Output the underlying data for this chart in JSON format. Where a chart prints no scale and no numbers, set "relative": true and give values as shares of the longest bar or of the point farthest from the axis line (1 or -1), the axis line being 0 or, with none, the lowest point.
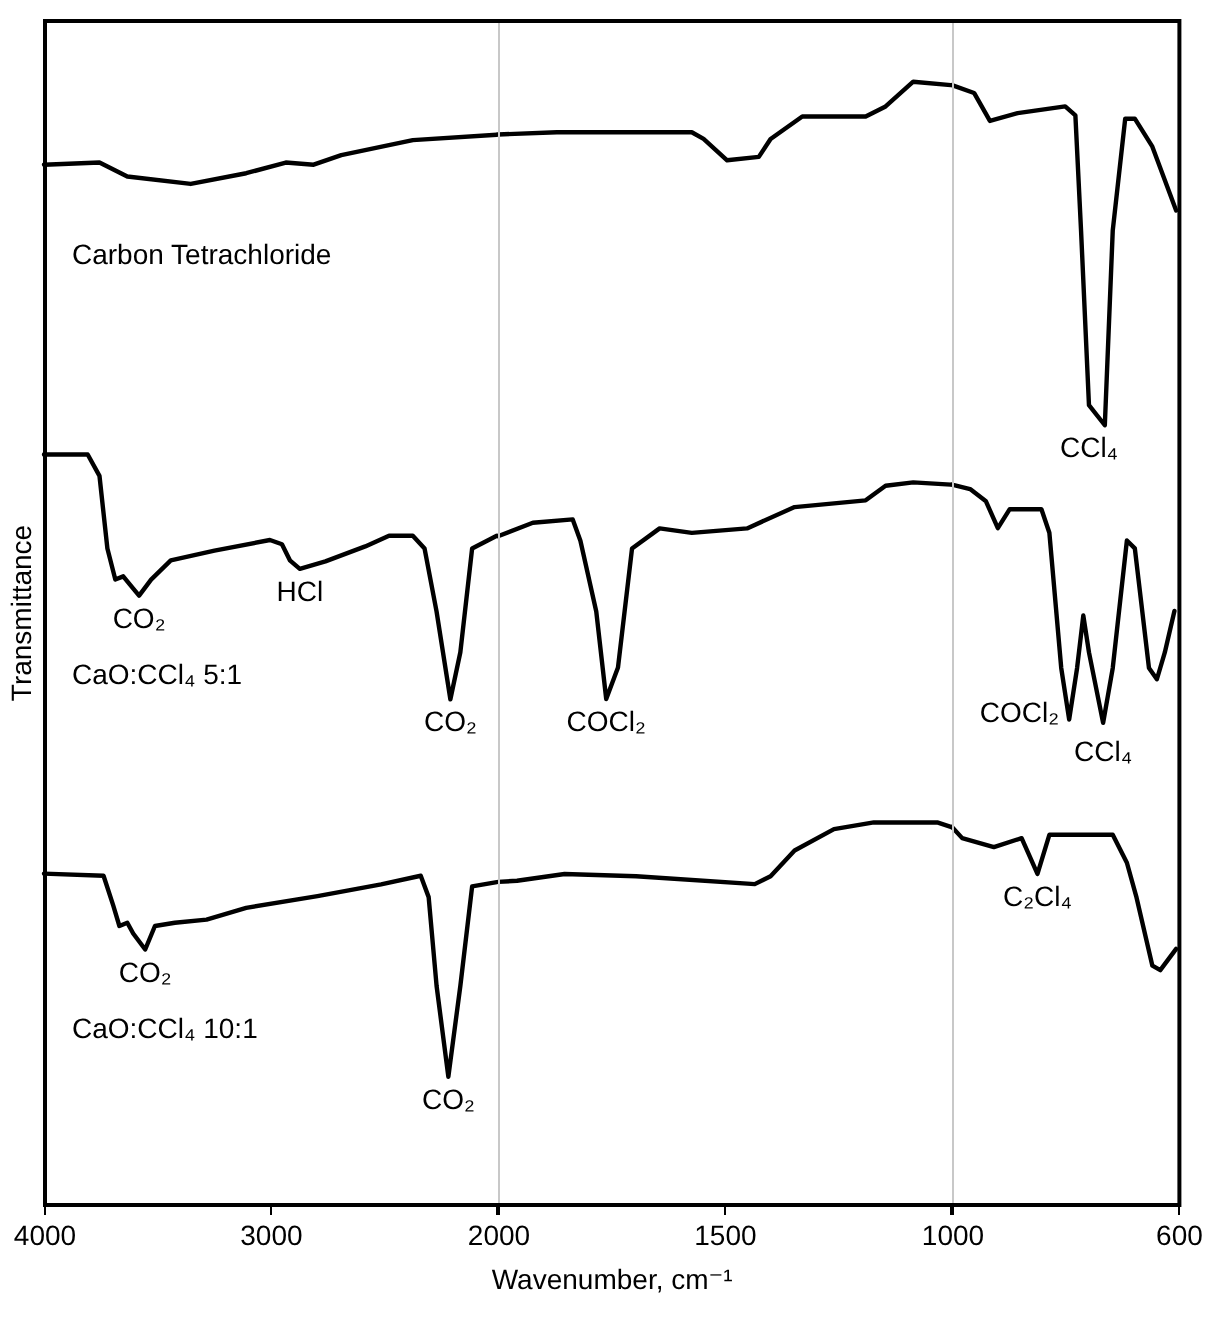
{
  "chart_data": [
    {
      "type": "line",
      "relative": true,
      "ylabel": "Transmittance",
      "xlim": [
        4000,
        2000
      ],
      "xticks": [
        4000,
        3000,
        {
          "value": 2000,
          "label": null
        }
      ],
      "tick_labels": "x",
      "grid": false,
      "line_style": "solid",
      "marker": "none",
      "series": [
        {
          "name": "Carbon Tetrachloride",
          "color": "#000000",
          "x": [
            4000,
            3755,
            3632,
            3352,
            3107,
            2932,
            2809,
            2687,
            2371,
            2000
          ],
          "values": [
            0.972,
            0.974,
            0.961,
            0.954,
            0.964,
            0.974,
            0.972,
            0.981,
            0.995,
            1.0
          ]
        },
        {
          "name": "CaO:CCl₄  5:1",
          "color": "#000000",
          "x": [
            4000,
            3807,
            3755,
            3720,
            3685,
            3650,
            3623,
            3580,
            3527,
            3440,
            3247,
            3002,
            2949,
            2914,
            2870,
            2757,
            2581,
            2476,
            2371,
            2319,
            2266,
            2205,
            2161,
            2109,
            2000
          ],
          "values": [
            0.701,
            0.701,
            0.681,
            0.613,
            0.584,
            0.587,
            0.58,
            0.569,
            0.584,
            0.602,
            0.611,
            0.621,
            0.617,
            0.602,
            0.594,
            0.601,
            0.615,
            0.625,
            0.625,
            0.613,
            0.554,
            0.472,
            0.516,
            0.613,
            0.625
          ]
        },
        {
          "name": "CaO:CCl₄  10:1",
          "color": "#000000",
          "x": [
            4000,
            3737,
            3694,
            3667,
            3632,
            3606,
            3553,
            3510,
            3422,
            3282,
            3107,
            2792,
            2511,
            2336,
            2301,
            2266,
            2214,
            2161,
            2109,
            2000
          ],
          "values": [
            0.309,
            0.307,
            0.279,
            0.26,
            0.263,
            0.253,
            0.238,
            0.26,
            0.263,
            0.266,
            0.277,
            0.288,
            0.299,
            0.307,
            0.287,
            0.204,
            0.119,
            0.204,
            0.297,
            0.301
          ]
        }
      ],
      "annotations": [
        {
          "text": "CO₂",
          "x": 3580,
          "y": 0.569
        },
        {
          "text": "HCl",
          "x": 2870,
          "y": 0.594
        },
        {
          "text": "CO₂",
          "x": 2205,
          "y": 0.472
        },
        {
          "text": "CO₂",
          "x": 3553,
          "y": 0.238
        },
        {
          "text": "CO₂",
          "x": 2214,
          "y": 0.119
        }
      ]
    },
    {
      "type": "line",
      "relative": true,
      "xlabel": "Wavenumber, cm⁻¹",
      "xlim": [
        2000,
        1000
      ],
      "xticks": [
        2000,
        1500,
        {
          "value": 1000,
          "label": null
        }
      ],
      "tick_labels": "x",
      "grid": false,
      "line_style": "solid",
      "marker": "none",
      "series": [
        {
          "color": "#000000",
          "x": [
            2000,
            1870,
            1572,
            1546,
            1494,
            1424,
            1398,
            1328,
            1188,
            1144,
            1083,
            1000
          ],
          "values": [
            0.953,
            0.955,
            0.955,
            0.949,
            0.93,
            0.933,
            0.949,
            0.969,
            0.969,
            0.978,
            1.0,
            0.997
          ]
        },
        {
          "color": "#000000",
          "x": [
            2000,
            1923,
            1835,
            1818,
            1783,
            1761,
            1735,
            1704,
            1643,
            1572,
            1450,
            1345,
            1188,
            1144,
            1083,
            1000
          ],
          "values": [
            0.595,
            0.607,
            0.61,
            0.591,
            0.528,
            0.45,
            0.478,
            0.584,
            0.602,
            0.598,
            0.602,
            0.621,
            0.627,
            0.64,
            0.643,
            0.641
          ]
        },
        {
          "color": "#000000",
          "x": [
            2000,
            1958,
            1853,
            1695,
            1433,
            1398,
            1345,
            1258,
            1170,
            1030,
            1000
          ],
          "values": [
            0.287,
            0.288,
            0.294,
            0.292,
            0.285,
            0.292,
            0.315,
            0.334,
            0.34,
            0.34,
            0.336
          ]
        }
      ],
      "annotations": [
        {
          "text": "COCl₂",
          "x": 1761,
          "y": 0.45
        }
      ]
    },
    {
      "type": "line",
      "relative": true,
      "xlim": [
        1000,
        600
      ],
      "xticks": [
        1000,
        600
      ],
      "tick_labels": "x",
      "grid": false,
      "line_style": "solid",
      "marker": "none",
      "series": [
        {
          "color": "#000000",
          "x": [
            1000,
            961,
            933,
            884,
            800,
            782,
            772,
            758,
            730,
            716,
            694,
            677,
            646,
            604
          ],
          "values": [
            1.0,
            0.993,
            0.968,
            0.975,
            0.981,
            0.973,
            0.87,
            0.714,
            0.696,
            0.87,
            0.97,
            0.97,
            0.945,
            0.888
          ]
        },
        {
          "color": "#000000",
          "x": [
            1000,
            968,
            940,
            919,
            898,
            842,
            828,
            807,
            793,
            779,
            768,
            758,
            733,
            716,
            691,
            677,
            652,
            638,
            624,
            607
          ],
          "values": [
            0.643,
            0.639,
            0.628,
            0.604,
            0.621,
            0.621,
            0.6,
            0.479,
            0.433,
            0.479,
            0.526,
            0.493,
            0.43,
            0.479,
            0.593,
            0.586,
            0.479,
            0.469,
            0.493,
            0.53
          ]
        },
        {
          "color": "#000000",
          "x": [
            1000,
            982,
            926,
            877,
            849,
            828,
            716,
            691,
            674,
            646,
            632,
            604
          ],
          "values": [
            0.337,
            0.327,
            0.319,
            0.327,
            0.295,
            0.33,
            0.33,
            0.305,
            0.274,
            0.213,
            0.209,
            0.228
          ]
        }
      ],
      "annotations": [
        {
          "text": "CCl₄",
          "x": 758,
          "y": 0.696
        },
        {
          "text": "COCl₂",
          "x": 793,
          "y": 0.433
        },
        {
          "text": "CCl₄",
          "x": 733,
          "y": 0.43
        },
        {
          "text": "C₂Cl₄",
          "x": 849,
          "y": 0.295
        }
      ]
    }
  ]
}
